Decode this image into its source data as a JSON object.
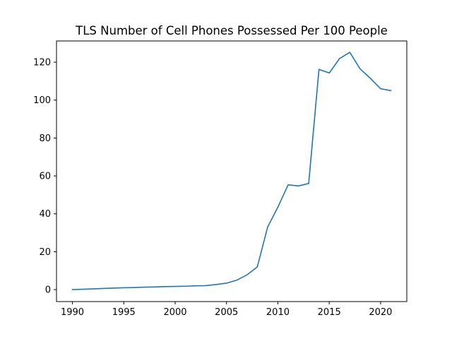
{
  "chart_data": {
    "type": "line",
    "title": "TLS Number of Cell Phones Possessed Per 100 People",
    "xlabel": "",
    "ylabel": "",
    "x_ticks": [
      1990,
      1995,
      2000,
      2005,
      2010,
      2015,
      2020
    ],
    "y_ticks": [
      0,
      20,
      40,
      60,
      80,
      100,
      120
    ],
    "xlim": [
      1988.45,
      2022.55
    ],
    "ylim": [
      -6.3,
      131.2
    ],
    "grid": false,
    "series": [
      {
        "color": "#1f77b4",
        "x": [
          1990,
          1991,
          1992,
          1993,
          1994,
          1995,
          1996,
          1997,
          1998,
          1999,
          2000,
          2001,
          2002,
          2003,
          2004,
          2005,
          2006,
          2007,
          2008,
          2009,
          2010,
          2011,
          2012,
          2013,
          2014,
          2015,
          2016,
          2017,
          2018,
          2019,
          2020,
          2021
        ],
        "y": [
          0,
          0.2,
          0.4,
          0.6,
          0.8,
          1.0,
          1.1,
          1.3,
          1.4,
          1.6,
          1.7,
          1.8,
          2.0,
          2.1,
          2.7,
          3.4,
          5.0,
          7.8,
          12.0,
          33.0,
          43.5,
          55.3,
          54.7,
          56.0,
          116.2,
          114.3,
          121.9,
          125.2,
          116.5,
          111.5,
          106.0,
          105.0
        ]
      }
    ]
  }
}
